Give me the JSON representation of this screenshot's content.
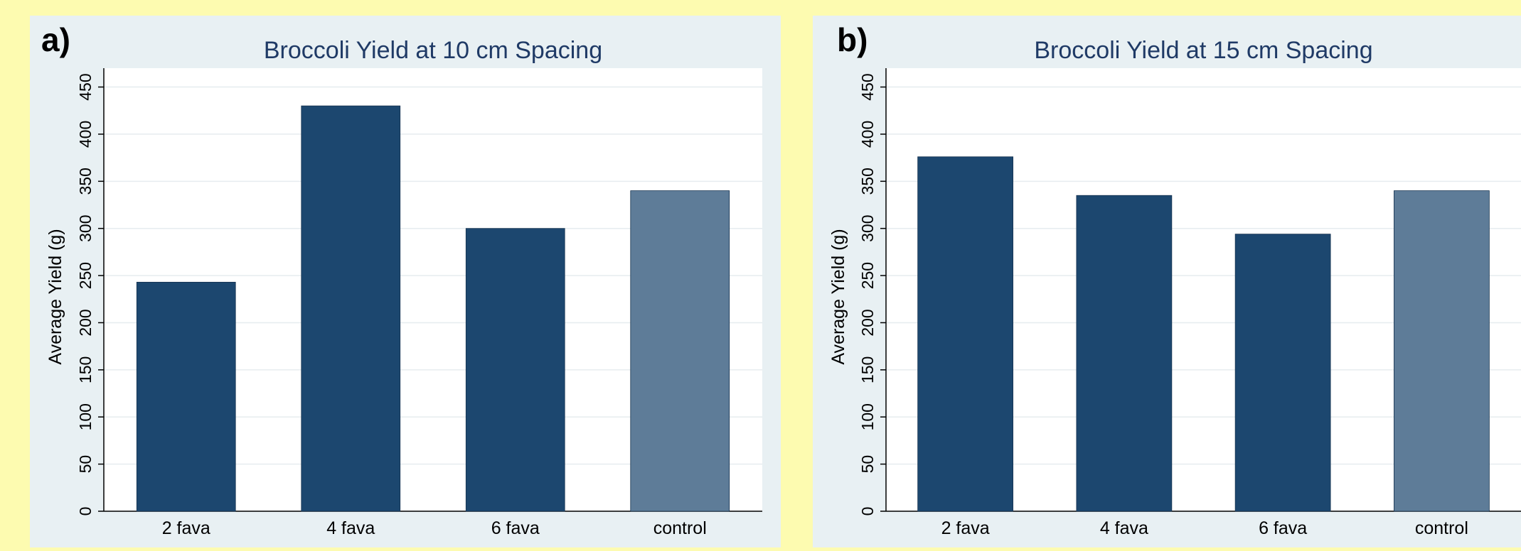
{
  "page": {
    "background": "#fdfbb0"
  },
  "style": {
    "panel_background": "#e8f0f3",
    "plot_background": "#ffffff",
    "gridline": "#e6ecef",
    "bar_color": "#1c476f",
    "control_bar_color": "#5e7c98",
    "title_color": "#1f3a66",
    "axis_color": "#000000"
  },
  "panels": [
    {
      "tag": "a)"
    },
    {
      "tag": "b)"
    }
  ],
  "chart_data": [
    {
      "type": "bar",
      "title": "Broccoli Yield at 10 cm Spacing",
      "xlabel": "",
      "ylabel": "Average Yield (g)",
      "categories": [
        "2 fava",
        "4 fava",
        "6 fava",
        "control"
      ],
      "values": [
        243,
        430,
        300,
        340
      ],
      "ylim": [
        0,
        470
      ],
      "yticks": [
        0,
        50,
        100,
        150,
        200,
        250,
        300,
        350,
        400,
        450
      ],
      "grid": true,
      "legend": "none"
    },
    {
      "type": "bar",
      "title": "Broccoli Yield at 15 cm Spacing",
      "xlabel": "",
      "ylabel": "Average Yield (g)",
      "categories": [
        "2 fava",
        "4 fava",
        "6 fava",
        "control"
      ],
      "values": [
        376,
        335,
        294,
        340
      ],
      "ylim": [
        0,
        470
      ],
      "yticks": [
        0,
        50,
        100,
        150,
        200,
        250,
        300,
        350,
        400,
        450
      ],
      "grid": true,
      "legend": "none"
    }
  ]
}
